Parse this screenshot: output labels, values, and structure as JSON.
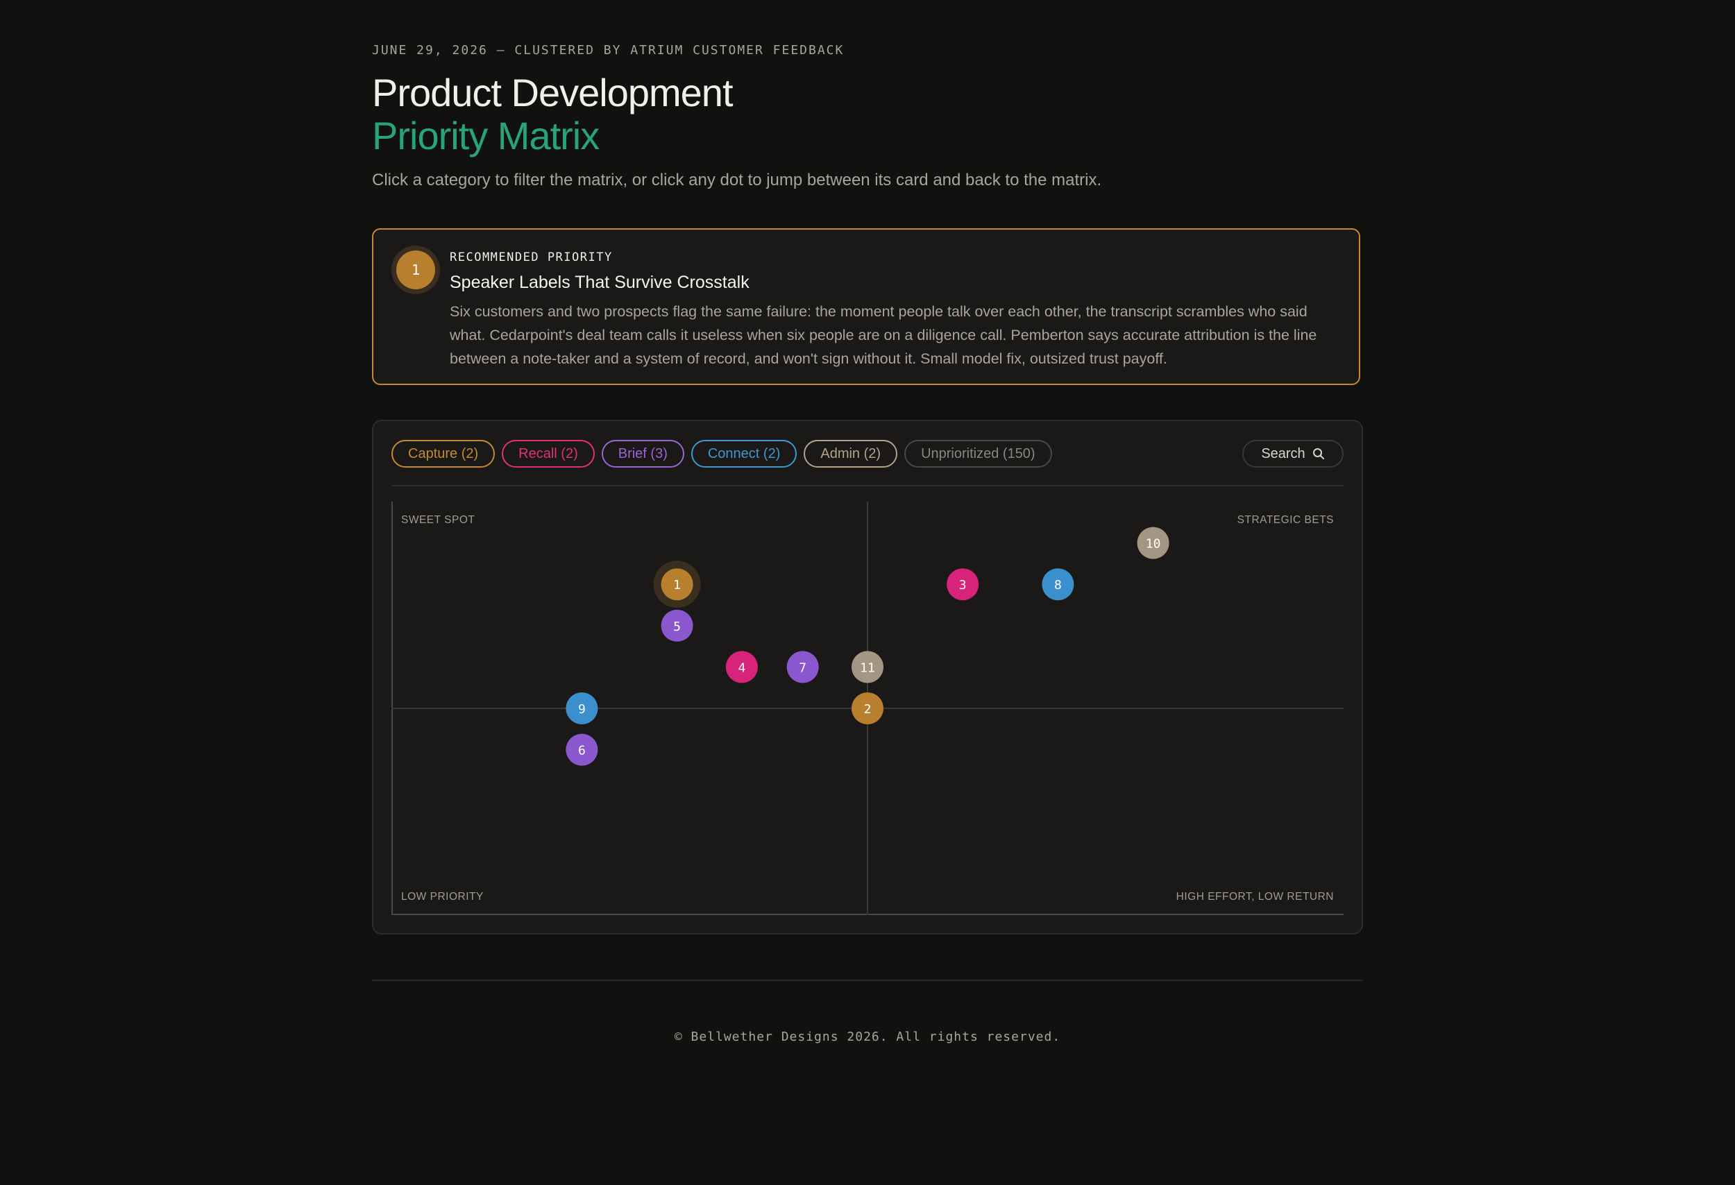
{
  "header": {
    "eyebrow": "JUNE 29, 2026 — CLUSTERED BY ATRIUM CUSTOMER FEEDBACK",
    "title_line1": "Product Development",
    "title_line2": "Priority Matrix",
    "subtitle": "Click a category to filter the matrix, or click any dot to jump between its card and back to the matrix."
  },
  "recommendation": {
    "number": "1",
    "eyebrow": "RECOMMENDED PRIORITY",
    "title": "Speaker Labels That Survive Crosstalk",
    "body": "Six customers and two prospects flag the same failure: the moment people talk over each other, the transcript scrambles who said what. Cedarpoint's deal team calls it useless when six people are on a diligence call. Pemberton says accurate attribution is the line between a note-taker and a system of record, and won't sign without it. Small model fix, outsized trust payoff.",
    "accent_color": "#c48a33"
  },
  "filters": [
    {
      "label": "Capture (2)",
      "color": "#c48a33"
    },
    {
      "label": "Recall (2)",
      "color": "#e0307a"
    },
    {
      "label": "Brief (3)",
      "color": "#9a63d6"
    },
    {
      "label": "Connect (2)",
      "color": "#3f97d0"
    },
    {
      "label": "Admin (2)",
      "color": "#b2a48c"
    },
    {
      "label": "Unprioritized (150)",
      "color": "#4a4845"
    }
  ],
  "search": {
    "label": "Search",
    "icon": "search-icon"
  },
  "quadrants": {
    "top_left": "SWEET SPOT",
    "top_right": "STRATEGIC BETS",
    "bottom_left": "LOW PRIORITY",
    "bottom_right": "HIGH EFFORT, LOW RETURN"
  },
  "chart_data": {
    "type": "scatter",
    "grid": false,
    "points": [
      {
        "label": "1",
        "x": 3,
        "y": 3,
        "category": "Capture",
        "color": "#b87f2e",
        "highlight": true
      },
      {
        "label": "2",
        "x": 5,
        "y": 0,
        "category": "Capture",
        "color": "#b87f2e"
      },
      {
        "label": "3",
        "x": 6,
        "y": 3,
        "category": "Recall",
        "color": "#d8237a"
      },
      {
        "label": "4",
        "x": 3.68,
        "y": 1,
        "category": "Recall",
        "color": "#d8237a"
      },
      {
        "label": "5",
        "x": 3,
        "y": 2,
        "category": "Brief",
        "color": "#8b57cf"
      },
      {
        "label": "6",
        "x": 2,
        "y": -1,
        "category": "Brief",
        "color": "#8b57cf"
      },
      {
        "label": "7",
        "x": 4.32,
        "y": 1,
        "category": "Brief",
        "color": "#8b57cf"
      },
      {
        "label": "8",
        "x": 7,
        "y": 3,
        "category": "Connect",
        "color": "#3a8fcc"
      },
      {
        "label": "9",
        "x": 2,
        "y": 0,
        "category": "Connect",
        "color": "#3a8fcc"
      },
      {
        "label": "10",
        "x": 8,
        "y": 4,
        "category": "Admin",
        "color": "#a49682"
      },
      {
        "label": "11",
        "x": 5,
        "y": 1,
        "category": "Admin",
        "color": "#a49682"
      }
    ],
    "xlim": [
      0,
      10
    ],
    "ylim": [
      -5,
      5
    ]
  },
  "footer": {
    "copyright": "© Bellwether Designs 2026. All rights reserved."
  }
}
